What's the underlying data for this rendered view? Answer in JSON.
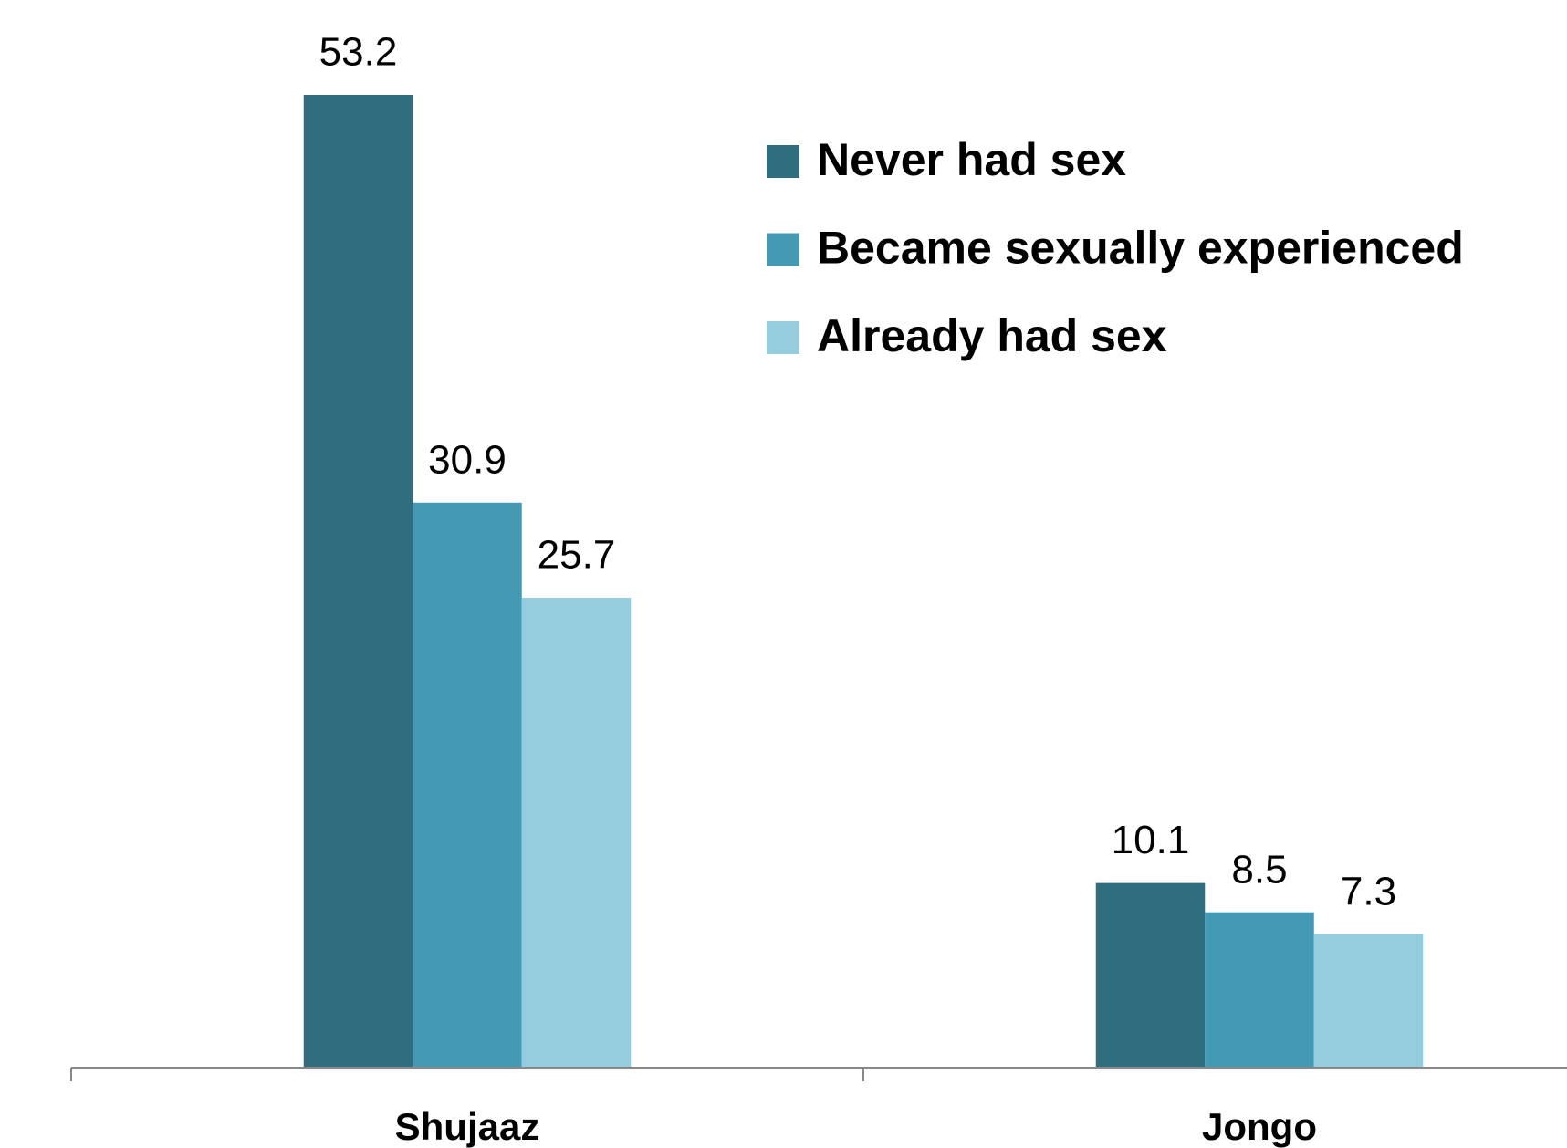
{
  "chart_data": {
    "type": "bar",
    "categories": [
      "Shujaaz",
      "Jongo"
    ],
    "series": [
      {
        "name": "Never had sex",
        "color": "#2e6e7e",
        "values": [
          53.2,
          10.1
        ]
      },
      {
        "name": "Became sexually experienced",
        "color": "#4499b3",
        "values": [
          30.9,
          8.5
        ]
      },
      {
        "name": "Already had sex",
        "color": "#96cddd",
        "values": [
          25.7,
          7.3
        ]
      }
    ],
    "legend": "top-right"
  }
}
